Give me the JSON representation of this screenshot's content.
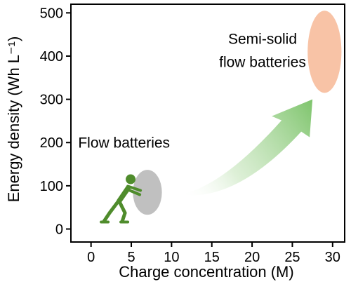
{
  "chart_data": {
    "type": "scatter",
    "title": "",
    "xlabel": "Charge concentration (M)",
    "ylabel": "Energy density (Wh L⁻¹)",
    "xlim": [
      -2.5,
      31.5
    ],
    "ylim": [
      -30,
      520
    ],
    "xticks": [
      "0",
      "5",
      "10",
      "15",
      "20",
      "25",
      "30"
    ],
    "yticks": [
      "0",
      "100",
      "200",
      "300",
      "400",
      "500"
    ],
    "grid": false,
    "regions": [
      {
        "label": "Flow batteries",
        "x": 7,
        "y": 85,
        "x_halfwidth": 1.8,
        "y_halfwidth": 52,
        "color": "#c0c0c0"
      },
      {
        "label_lines": [
          "Semi-solid",
          "flow batteries"
        ],
        "x": 29,
        "y": 410,
        "x_halfwidth": 2.1,
        "y_halfwidth": 95,
        "color": "#f8c3a6"
      }
    ],
    "arrow": {
      "from_x": 11,
      "from_y": 80,
      "to_x": 27.5,
      "to_y": 300,
      "color": "#7ec46c"
    },
    "figure": {
      "icon": "person-pushing-icon",
      "color": "#4f8c2c",
      "x": 3,
      "y": 60
    }
  }
}
